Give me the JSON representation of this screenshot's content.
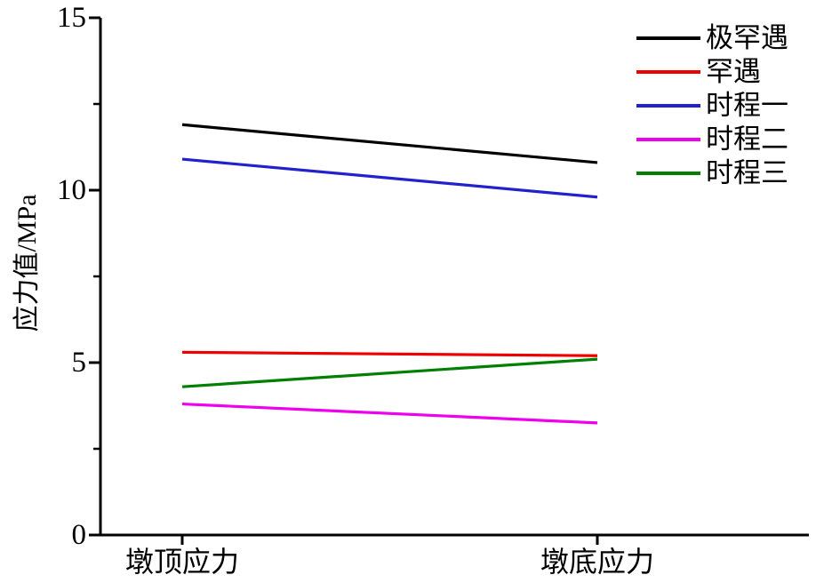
{
  "chart_data": {
    "type": "line",
    "title": "",
    "xlabel": "",
    "ylabel": "应力值/MPa",
    "categories": [
      "墩顶应力",
      "墩底应力"
    ],
    "ylim": [
      0,
      15
    ],
    "ytick_values": [
      0,
      5,
      10,
      15
    ],
    "ytick_labels": [
      "0",
      "5",
      "10",
      "15"
    ],
    "minor_ytick_values": [
      2.5,
      7.5,
      12.5
    ],
    "grid": false,
    "legend_position": "top-right",
    "axis_color": "#000000",
    "series": [
      {
        "name": "极罕遇",
        "color": "#000000",
        "values": [
          11.9,
          10.8
        ]
      },
      {
        "name": "罕遇",
        "color": "#ee0000",
        "values": [
          5.3,
          5.2
        ]
      },
      {
        "name": "时程一",
        "color": "#2222cc",
        "values": [
          10.9,
          9.8
        ]
      },
      {
        "name": "时程二",
        "color": "#ee00ee",
        "values": [
          3.8,
          3.25
        ]
      },
      {
        "name": "时程三",
        "color": "#008000",
        "values": [
          4.3,
          5.1
        ]
      }
    ]
  }
}
